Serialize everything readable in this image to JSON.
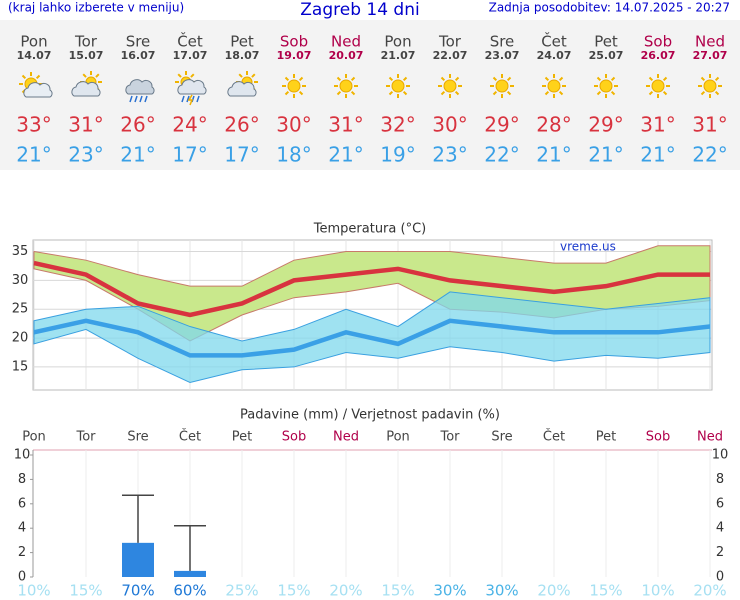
{
  "header": {
    "note": "(kraj lahko izberete v meniju)",
    "title": "Zagreb 14 dni",
    "updated": "Zadnja posodobitev: 14.07.2025 - 20:27"
  },
  "days": [
    {
      "name": "Pon",
      "date": "14.07",
      "max": "33°",
      "min": "21°",
      "color": "#444444"
    },
    {
      "name": "Tor",
      "date": "15.07",
      "max": "31°",
      "min": "23°",
      "color": "#444444"
    },
    {
      "name": "Sre",
      "date": "16.07",
      "max": "26°",
      "min": "21°",
      "color": "#444444"
    },
    {
      "name": "Čet",
      "date": "17.07",
      "max": "24°",
      "min": "17°",
      "color": "#444444"
    },
    {
      "name": "Pet",
      "date": "18.07",
      "max": "26°",
      "min": "17°",
      "color": "#444444"
    },
    {
      "name": "Sob",
      "date": "19.07",
      "max": "30°",
      "min": "18°",
      "color": "#b0004a"
    },
    {
      "name": "Ned",
      "date": "20.07",
      "max": "31°",
      "min": "21°",
      "color": "#b0004a"
    },
    {
      "name": "Pon",
      "date": "21.07",
      "max": "32°",
      "min": "19°",
      "color": "#444444"
    },
    {
      "name": "Tor",
      "date": "22.07",
      "max": "30°",
      "min": "23°",
      "color": "#444444"
    },
    {
      "name": "Sre",
      "date": "23.07",
      "max": "29°",
      "min": "22°",
      "color": "#444444"
    },
    {
      "name": "Čet",
      "date": "24.07",
      "max": "28°",
      "min": "21°",
      "color": "#444444"
    },
    {
      "name": "Pet",
      "date": "25.07",
      "max": "29°",
      "min": "21°",
      "color": "#444444"
    },
    {
      "name": "Sob",
      "date": "26.07",
      "max": "31°",
      "min": "21°",
      "color": "#b0004a"
    },
    {
      "name": "Ned",
      "date": "27.07",
      "max": "31°",
      "min": "22°",
      "color": "#b0004a"
    }
  ],
  "chart_data": [
    {
      "type": "line",
      "title": "Temperatura (°C)",
      "watermark": "vreme.us",
      "categories": [
        null,
        null,
        null,
        null,
        null,
        null,
        null,
        null,
        null,
        null,
        null,
        null,
        null,
        null
      ],
      "ylim": [
        11,
        37
      ],
      "yticks": [
        15,
        20,
        25,
        30,
        35
      ],
      "grid": true,
      "bands": [
        {
          "color": "#c9e88c",
          "edge": "#c87a6a",
          "high": [
            35,
            33.5,
            31,
            29,
            29,
            33.5,
            35,
            35,
            35,
            34,
            33,
            33,
            36,
            36
          ],
          "low": [
            32,
            30,
            25,
            19.5,
            24,
            27,
            28,
            29.5,
            25,
            24.5,
            23.5,
            25,
            25.5,
            26.5
          ]
        },
        {
          "color": "#7fd8ec",
          "edge": "#3aa0e0",
          "high": [
            23,
            25,
            25.5,
            22,
            19.5,
            21.5,
            25,
            22,
            28,
            27,
            26,
            25,
            26,
            27
          ],
          "low": [
            19,
            21.5,
            16.5,
            12.3,
            14.5,
            15,
            17.5,
            16.5,
            18.5,
            17.5,
            16,
            17,
            16.5,
            17.5
          ]
        }
      ],
      "series": [
        {
          "color": "#d8333f",
          "values": [
            33,
            31,
            26,
            24,
            26,
            30,
            31,
            32,
            30,
            29,
            28,
            29,
            31,
            31
          ]
        },
        {
          "color": "#3aa0e6",
          "values": [
            21,
            23,
            21,
            17,
            17,
            18,
            21,
            19,
            23,
            22,
            21,
            21,
            21,
            22
          ]
        }
      ]
    },
    {
      "type": "bar",
      "title": "Padavine (mm) / Verjetnost padavin (%)",
      "categories": [
        "Pon",
        "Tor",
        "Sre",
        "Čet",
        "Pet",
        "Sob",
        "Ned",
        "Pon",
        "Tor",
        "Sre",
        "Čet",
        "Pet",
        "Sob",
        "Ned"
      ],
      "values": [
        0,
        0,
        2.8,
        0.5,
        0,
        0,
        0,
        0,
        0,
        0,
        0,
        0,
        0,
        0
      ],
      "error_high": [
        null,
        null,
        6.7,
        4.2,
        null,
        null,
        null,
        null,
        null,
        null,
        null,
        null,
        null,
        null
      ],
      "color": "#2e86e0",
      "ylim": [
        0,
        10
      ],
      "yticks": [
        0,
        2,
        4,
        6,
        8,
        10
      ],
      "probability": [
        10,
        15,
        70,
        60,
        25,
        15,
        20,
        15,
        30,
        30,
        20,
        15,
        10,
        20
      ],
      "probability_labels": [
        "10%",
        "15%",
        "70%",
        "60%",
        "25%",
        "15%",
        "20%",
        "15%",
        "30%",
        "30%",
        "20%",
        "15%",
        "10%",
        "20%"
      ]
    }
  ]
}
